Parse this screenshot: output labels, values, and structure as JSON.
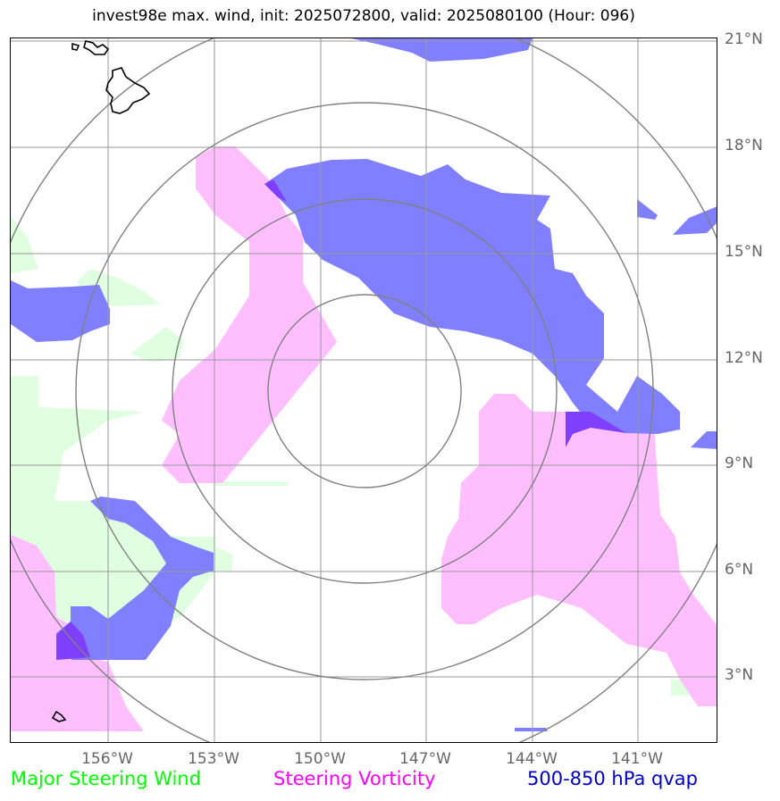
{
  "title": "invest98e max. wind, init: 2025072800, valid: 2025080100 (Hour: 096)",
  "lat_labels": [
    "21°N",
    "18°N",
    "15°N",
    "12°N",
    "9°N",
    "6°N",
    "3°N"
  ],
  "lon_labels": [
    "156°W",
    "153°W",
    "150°W",
    "147°W",
    "144°W",
    "141°W"
  ],
  "legend": [
    {
      "label": "Major Steering Wind",
      "color": "#00ff00"
    },
    {
      "label": "Steering Vorticity",
      "color": "#ff00ff"
    },
    {
      "label": "500-850 hPa qvap",
      "color": "#0000cc"
    }
  ],
  "colors": {
    "wind_fill": "#e0ffe0",
    "vorticity_fill": "#ffbfff",
    "qvap_fill": "#7f7fff",
    "overlap_fill": "#7f3fff",
    "gridline": "#999999",
    "range_ring": "#808080",
    "coastline": "#000000"
  }
}
